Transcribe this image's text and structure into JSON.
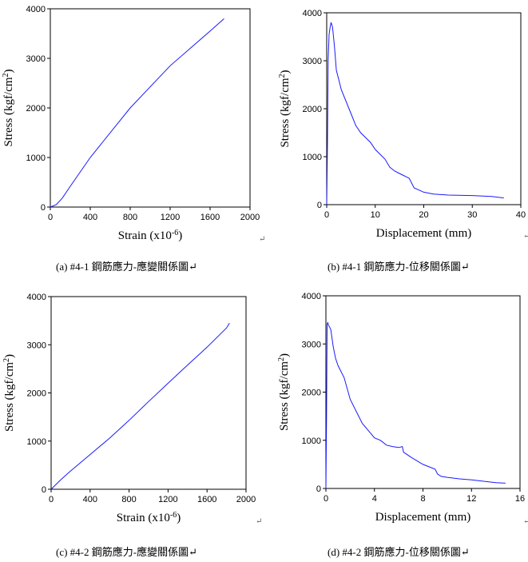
{
  "chart_data": [
    {
      "id": "a",
      "type": "line",
      "caption": "(a) #4-1 鋼筋應力-應變關係圖↵",
      "xlabel_base": "Strain (x10",
      "xlabel_sup": "-6",
      "xlabel_tail": ")",
      "ylabel_base": "Stress (kgf/cm",
      "ylabel_sup": "2",
      "ylabel_tail": ")",
      "xlim": [
        0,
        2000
      ],
      "ylim": [
        0,
        4000
      ],
      "xticks": [
        0,
        400,
        800,
        1200,
        1600,
        2000
      ],
      "yticks": [
        0,
        1000,
        2000,
        3000,
        4000
      ],
      "color": "#1a1aff",
      "series": [
        {
          "x": [
            0,
            60,
            120,
            200,
            400,
            800,
            1200,
            1600,
            1740
          ],
          "y": [
            0,
            50,
            180,
            420,
            1000,
            2000,
            2850,
            3550,
            3800
          ]
        }
      ]
    },
    {
      "id": "b",
      "type": "line",
      "caption": "(b) #4-1 鋼筋應力-位移關係圖↵",
      "xlabel_base": "Displacement (mm)",
      "xlabel_sup": "",
      "xlabel_tail": "",
      "ylabel_base": "Stress (kgf/cm",
      "ylabel_sup": "2",
      "ylabel_tail": ")",
      "xlim": [
        0,
        40
      ],
      "ylim": [
        0,
        4000
      ],
      "xticks": [
        0,
        10,
        20,
        30,
        40
      ],
      "yticks": [
        0,
        1000,
        2000,
        3000,
        4000
      ],
      "color": "#1a1aff",
      "series": [
        {
          "x": [
            0,
            0.15,
            0.3,
            0.5,
            0.7,
            0.9,
            1.2,
            1.6,
            2,
            2.5,
            3,
            4,
            5,
            6,
            7,
            8,
            9,
            10,
            11,
            12,
            13,
            14,
            15,
            16,
            17,
            17.5,
            18,
            20,
            22,
            25,
            30,
            34,
            36.5
          ],
          "y": [
            0,
            1200,
            3000,
            3550,
            3700,
            3800,
            3700,
            3300,
            2800,
            2600,
            2400,
            2150,
            1900,
            1650,
            1500,
            1400,
            1300,
            1150,
            1050,
            950,
            780,
            700,
            650,
            600,
            550,
            450,
            350,
            260,
            220,
            200,
            190,
            170,
            140
          ]
        }
      ]
    },
    {
      "id": "c",
      "type": "line",
      "caption": "(c) #4-2 鋼筋應力-應變關係圖↵",
      "xlabel_base": "Strain (x10",
      "xlabel_sup": "-6",
      "xlabel_tail": ")",
      "ylabel_base": "Stress (kgf/cm",
      "ylabel_sup": "2",
      "ylabel_tail": ")",
      "xlim": [
        0,
        2000
      ],
      "ylim": [
        0,
        4000
      ],
      "xticks": [
        0,
        400,
        800,
        1200,
        1600,
        2000
      ],
      "yticks": [
        0,
        1000,
        2000,
        3000,
        4000
      ],
      "color": "#1a1aff",
      "series": [
        {
          "x": [
            0,
            100,
            200,
            400,
            600,
            800,
            1000,
            1200,
            1400,
            1600,
            1800,
            1830
          ],
          "y": [
            0,
            200,
            380,
            720,
            1060,
            1430,
            1820,
            2200,
            2580,
            2950,
            3350,
            3450
          ]
        }
      ]
    },
    {
      "id": "d",
      "type": "line",
      "caption": "(d) #4-2 鋼筋應力-位移關係圖↵",
      "xlabel_base": "Displacement (mm)",
      "xlabel_sup": "",
      "xlabel_tail": "",
      "ylabel_base": "Stress (kgf/cm",
      "ylabel_sup": "2",
      "ylabel_tail": ")",
      "xlim": [
        0,
        16
      ],
      "ylim": [
        0,
        4000
      ],
      "xticks": [
        0,
        4,
        8,
        12,
        16
      ],
      "yticks": [
        0,
        1000,
        2000,
        3000,
        4000
      ],
      "color": "#1a1aff",
      "series": [
        {
          "x": [
            0,
            0.05,
            0.1,
            0.15,
            0.2,
            0.3,
            0.4,
            0.6,
            0.8,
            1,
            1.5,
            2,
            2.5,
            3,
            3.5,
            4,
            4.5,
            5,
            5.5,
            6,
            6.3,
            6.4,
            6.6,
            7,
            8,
            9,
            9.2,
            9.5,
            10,
            11,
            12,
            13,
            14,
            14.8
          ],
          "y": [
            0,
            1500,
            3400,
            3450,
            3400,
            3350,
            3300,
            2950,
            2700,
            2550,
            2300,
            1850,
            1600,
            1350,
            1200,
            1050,
            1000,
            900,
            870,
            850,
            870,
            750,
            720,
            650,
            500,
            400,
            300,
            250,
            230,
            200,
            180,
            150,
            120,
            110
          ]
        }
      ]
    }
  ]
}
